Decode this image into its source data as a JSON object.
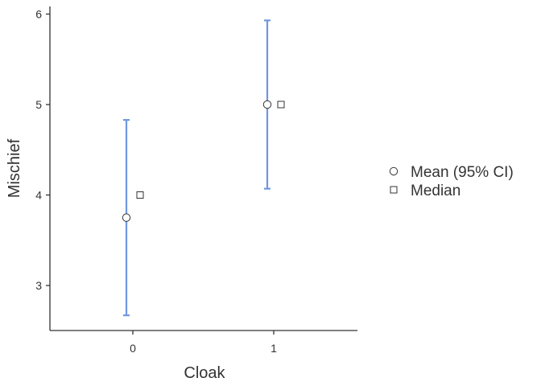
{
  "chart_data": {
    "type": "scatter",
    "title": "",
    "xlabel": "Cloak",
    "ylabel": "Mischief",
    "categories": [
      "0",
      "1"
    ],
    "xlim": [
      -0.6,
      1.6
    ],
    "ylim": [
      2.5,
      6.1
    ],
    "yticks": [
      3,
      4,
      5,
      6
    ],
    "grid": false,
    "legend_position": "right",
    "series": [
      {
        "name": "Mean (95% CI)",
        "marker": "circle",
        "values": [
          3.75,
          5.0
        ],
        "ci_lower": [
          2.67,
          4.07
        ],
        "ci_upper": [
          4.83,
          5.93
        ]
      },
      {
        "name": "Median",
        "marker": "square",
        "values": [
          4.0,
          5.0
        ]
      }
    ],
    "colors": {
      "error_bar": "#6f97e0",
      "marker_stroke": "#333333",
      "marker_fill": "#ffffff",
      "axis": "#333333"
    }
  }
}
